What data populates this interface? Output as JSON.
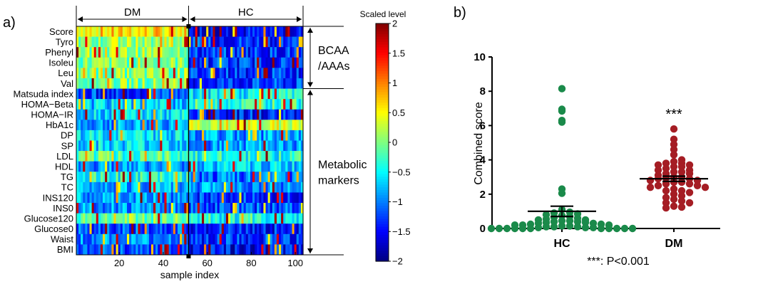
{
  "panel_a": {
    "label": "a)"
  },
  "panel_b": {
    "label": "b)"
  },
  "chart_data": [
    {
      "type": "heatmap",
      "xlabel": "sample index",
      "x_ticks": [
        20,
        40,
        60,
        80,
        100
      ],
      "x_range": [
        1,
        103
      ],
      "group_split_after": 51,
      "groups": [
        {
          "name": "DM",
          "from": 1,
          "to": 51
        },
        {
          "name": "HC",
          "from": 52,
          "to": 103
        }
      ],
      "rows": [
        "Score",
        "Tyro",
        "Phenyl",
        "Isoleu",
        "Leu",
        "Val",
        "Matsuda index",
        "HOMA−Beta",
        "HOMA−IR",
        "HbA1c",
        "DP",
        "SP",
        "LDL",
        "HDL",
        "TG",
        "TC",
        "INS120",
        "INS0",
        "Glucose120",
        "Glucose0",
        "Waist",
        "BMI"
      ],
      "row_profiles": [
        [
          0.6,
          -1.5
        ],
        [
          0.1,
          -1.3
        ],
        [
          0.1,
          -1.3
        ],
        [
          0.0,
          -1.3
        ],
        [
          0.0,
          -1.3
        ],
        [
          0.0,
          -1.3
        ],
        [
          -1.3,
          -0.5
        ],
        [
          -0.7,
          -0.3
        ],
        [
          -0.6,
          -1.4
        ],
        [
          -0.9,
          0.3
        ],
        [
          -0.6,
          -0.9
        ],
        [
          -0.6,
          -0.9
        ],
        [
          -0.2,
          -0.4
        ],
        [
          -0.9,
          -0.7
        ],
        [
          -0.4,
          -1.1
        ],
        [
          -0.8,
          -0.9
        ],
        [
          -0.9,
          -1.3
        ],
        [
          -0.9,
          -1.2
        ],
        [
          -0.1,
          -0.4
        ],
        [
          -1.2,
          -1.4
        ],
        [
          -1.0,
          -1.3
        ],
        [
          -1.2,
          -1.5
        ]
      ],
      "brackets": [
        {
          "label_lines": [
            "BCAA",
            "/AAAs"
          ],
          "rows_from": "Score",
          "rows_to": "Val"
        },
        {
          "label_lines": [
            "Metabolic",
            "markers"
          ],
          "rows_from": "Matsuda index",
          "rows_to": "BMI"
        }
      ],
      "colorbar": {
        "title": "Scaled level",
        "range": [
          -2,
          2
        ],
        "ticks": [
          "2",
          "1.5",
          "1",
          "0.5",
          "0",
          "−0.5",
          "−1",
          "−1.5",
          "−2"
        ],
        "colormap": "jet"
      }
    },
    {
      "type": "scatter",
      "categories": [
        "HC",
        "DM"
      ],
      "ylabel": "Combined score",
      "ylim": [
        0,
        10
      ],
      "y_ticks": [
        0,
        2,
        4,
        6,
        8,
        10
      ],
      "annotation_above_dm": "***",
      "footnote": "***: P<0.001",
      "series": [
        {
          "category": "HC",
          "color": "#1a8a4a",
          "mean": 1.0,
          "sem": 0.3,
          "values": [
            8.15,
            6.95,
            6.85,
            6.3,
            6.2,
            2.3,
            2.05,
            1.1,
            0.95,
            0.9,
            0.85,
            0.8,
            0.75,
            0.7,
            0.65,
            0.6,
            0.55,
            0.5,
            0.5,
            0.45,
            0.45,
            0.4,
            0.4,
            0.35,
            0.35,
            0.3,
            0.3,
            0.25,
            0.25,
            0.2,
            0.2,
            0.2,
            0.15,
            0.15,
            0.1,
            0.1,
            0.1,
            0.05,
            0.05,
            0.05,
            0.0,
            0.0,
            0.0,
            0.0,
            0.0,
            0.0,
            0.0,
            0.0,
            0.0,
            0.0,
            0.0
          ]
        },
        {
          "category": "DM",
          "color": "#a51d24",
          "mean": 2.9,
          "sem": 0.15,
          "values": [
            5.8,
            5.2,
            4.9,
            4.6,
            4.3,
            4.0,
            3.9,
            3.8,
            3.8,
            3.7,
            3.7,
            3.6,
            3.6,
            3.5,
            3.4,
            3.4,
            3.3,
            3.3,
            3.2,
            3.2,
            3.1,
            3.0,
            3.0,
            2.95,
            2.9,
            2.9,
            2.8,
            2.8,
            2.7,
            2.7,
            2.6,
            2.6,
            2.5,
            2.5,
            2.4,
            2.4,
            2.3,
            2.2,
            2.2,
            2.1,
            2.0,
            1.9,
            1.8,
            1.7,
            1.6,
            1.5,
            1.5,
            1.3,
            1.25,
            1.2
          ]
        }
      ]
    }
  ]
}
